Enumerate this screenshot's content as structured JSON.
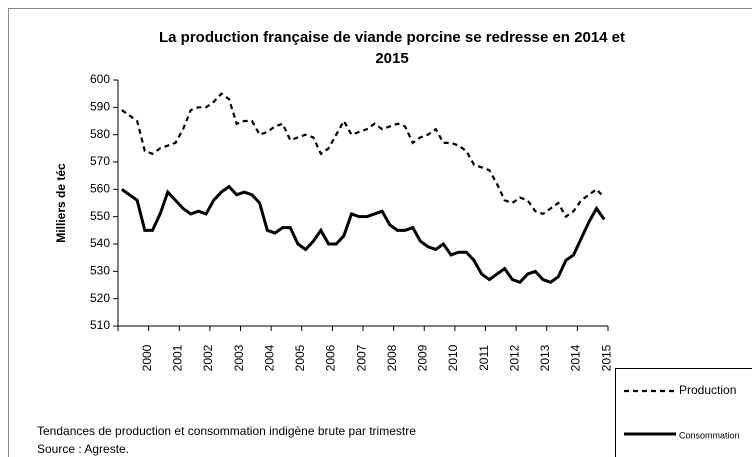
{
  "chart_data": {
    "type": "line",
    "title": [
      "La production française de viande porcine se redresse en 2014 et",
      "2015"
    ],
    "ylabel": "Milliers de téc",
    "notes": [
      "Tendances de production et consommation indigène brute par trimestre",
      "Source : Agreste."
    ],
    "categories": [
      null,
      null,
      null,
      "2000",
      null,
      null,
      null,
      "2001",
      null,
      null,
      null,
      "2002",
      null,
      null,
      null,
      "2003",
      null,
      null,
      null,
      "2004",
      null,
      null,
      null,
      "2005",
      null,
      null,
      null,
      "2006",
      null,
      null,
      null,
      "2007",
      null,
      null,
      null,
      "2008",
      null,
      null,
      null,
      "2009",
      null,
      null,
      null,
      "2010",
      null,
      null,
      null,
      "2011",
      null,
      null,
      null,
      "2012",
      null,
      null,
      null,
      "2013",
      null,
      null,
      null,
      "2014",
      null,
      null,
      null,
      "2015"
    ],
    "series": [
      {
        "name": "Production",
        "color": "#000000",
        "dash": true,
        "values": [
          589,
          587,
          585,
          574,
          573,
          575,
          576,
          577,
          582,
          589,
          590,
          590,
          592,
          595,
          593,
          584,
          585,
          585,
          580,
          581,
          583,
          584,
          578,
          579,
          580,
          579,
          573,
          575,
          580,
          585,
          580,
          581,
          582,
          584,
          582,
          583,
          584,
          583,
          577,
          579,
          580,
          582,
          577,
          577,
          576,
          574,
          569,
          568,
          567,
          562,
          556,
          555,
          557,
          556,
          552,
          551,
          553,
          555,
          550,
          552,
          556,
          558,
          560,
          557
        ]
      },
      {
        "name": "Consommation",
        "color": "#000000",
        "dash": false,
        "values": [
          560,
          558,
          556,
          545,
          545,
          551,
          559,
          556,
          553,
          551,
          552,
          551,
          556,
          559,
          561,
          558,
          559,
          558,
          555,
          545,
          544,
          546,
          546,
          540,
          538,
          541,
          545,
          540,
          540,
          543,
          551,
          550,
          550,
          551,
          552,
          547,
          545,
          545,
          546,
          541,
          539,
          538,
          540,
          536,
          537,
          537,
          534,
          529,
          527,
          529,
          531,
          527,
          526,
          529,
          530,
          527,
          526,
          528,
          534,
          536,
          542,
          548,
          553,
          549
        ]
      }
    ],
    "ylim": [
      510,
      600
    ],
    "yticks": [
      510,
      520,
      530,
      540,
      550,
      560,
      570,
      580,
      590,
      600
    ],
    "grid": false
  }
}
